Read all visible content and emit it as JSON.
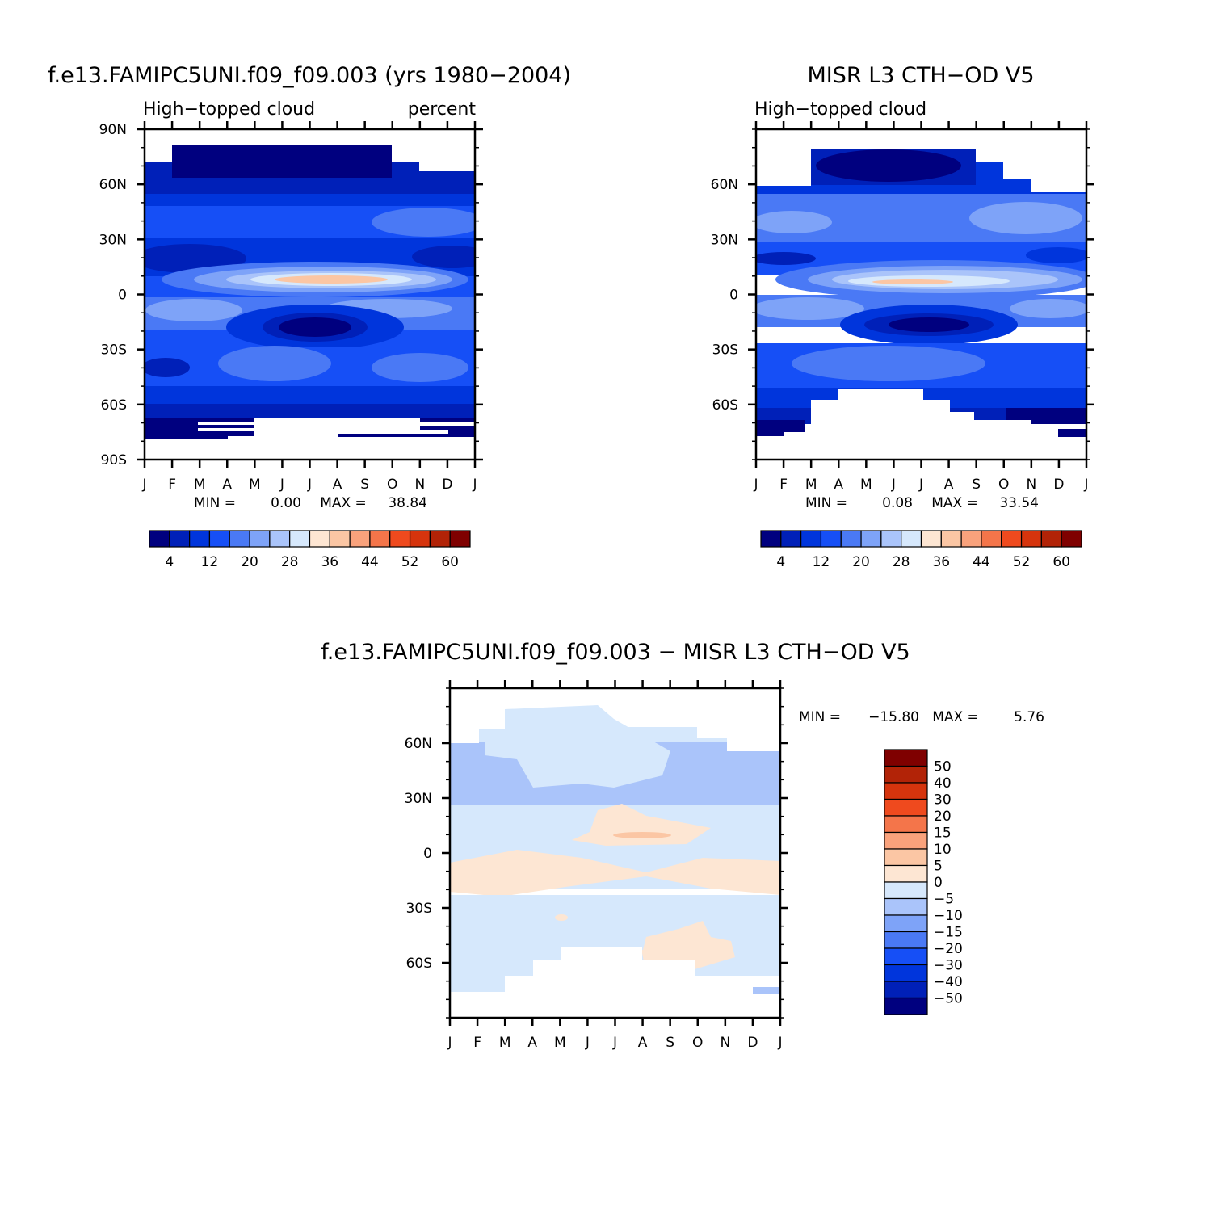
{
  "chart_data": [
    {
      "type": "heatmap",
      "title": "f.e13.FAMIPC5UNI.f09_f09.003 (yrs 1980−2004)",
      "left_string": "High−topped cloud",
      "right_string": "percent",
      "x_ticks": [
        "J",
        "F",
        "M",
        "A",
        "M",
        "J",
        "J",
        "A",
        "S",
        "O",
        "N",
        "D",
        "J"
      ],
      "y_ticks": [
        "90N",
        "60N",
        "30N",
        "0",
        "30S",
        "60S",
        "90S"
      ],
      "min_label": "MIN =",
      "min": "0.00",
      "max_label": "MAX =",
      "max": "38.84",
      "colorbar_labels": [
        "4",
        "12",
        "20",
        "28",
        "36",
        "44",
        "52",
        "60"
      ],
      "colors": [
        "#00007f",
        "#0020b8",
        "#0035dc",
        "#164ff6",
        "#4a79f5",
        "#7ea3f8",
        "#aac4fa",
        "#d6e8fc",
        "#fde6d3",
        "#fbc6a4",
        "#f9a27c",
        "#f4754a",
        "#ef4a1e",
        "#d6340d",
        "#b22307",
        "#7f0000"
      ],
      "coverage": "latitudes 90N to ~82N and ~78S to 90S missing",
      "values_by_latitude": {
        "80N": 2,
        "60N": 6,
        "45N": 12,
        "30N": 14,
        "20N": 9,
        "10N": 28,
        "8N": 36,
        "0": 18,
        "8S": 22,
        "15S": 10,
        "20S": 3,
        "30S": 12,
        "45S": 14,
        "60S": 8,
        "72S": 3
      }
    },
    {
      "type": "heatmap",
      "title": "MISR L3 CTH−OD V5",
      "left_string": "High−topped cloud",
      "right_string": "",
      "x_ticks": [
        "J",
        "F",
        "M",
        "A",
        "M",
        "J",
        "J",
        "A",
        "S",
        "O",
        "N",
        "D",
        "J"
      ],
      "y_ticks": [
        "60N",
        "30N",
        "0",
        "30S",
        "60S"
      ],
      "min_label": "MIN =",
      "min": "0.08",
      "max_label": "MAX =",
      "max": "33.54",
      "colorbar_labels": [
        "4",
        "12",
        "20",
        "28",
        "36",
        "44",
        "52",
        "60"
      ],
      "colors": [
        "#00007f",
        "#0020b8",
        "#0035dc",
        "#164ff6",
        "#4a79f5",
        "#7ea3f8",
        "#aac4fa",
        "#d6e8fc",
        "#fde6d3",
        "#fbc6a4",
        "#f9a27c",
        "#f4754a",
        "#ef4a1e",
        "#d6340d",
        "#b22307",
        "#7f0000"
      ],
      "coverage": "latitudes ~82N to ~52S-78S observed, polar regions missing",
      "values_by_latitude": {
        "78N": 6,
        "60N": 11,
        "45N": 21,
        "30N": 14,
        "20N": 10,
        "10N": 28,
        "7N": 34,
        "0": 21,
        "8S": 24,
        "15S": 12,
        "20S": 5,
        "30S": 14,
        "45S": 13,
        "60S": 10,
        "70S": 4
      }
    },
    {
      "type": "heatmap",
      "title": "f.e13.FAMIPC5UNI.f09_f09.003 − MISR L3 CTH−OD V5",
      "x_ticks": [
        "J",
        "F",
        "M",
        "A",
        "M",
        "J",
        "J",
        "A",
        "S",
        "O",
        "N",
        "D",
        "J"
      ],
      "y_ticks": [
        "60N",
        "30N",
        "0",
        "30S",
        "60S"
      ],
      "min_label": "MIN =",
      "min": "−15.80",
      "max_label": "MAX =",
      "max": "5.76",
      "colorbar_labels": [
        "50",
        "40",
        "30",
        "20",
        "15",
        "10",
        "5",
        "0",
        "−5",
        "−10",
        "−15",
        "−20",
        "−30",
        "−40",
        "−50"
      ],
      "colors": [
        "#7f0000",
        "#b22307",
        "#d6340d",
        "#ef4a1e",
        "#f4754a",
        "#f9a27c",
        "#fbc6a4",
        "#fde6d3",
        "#d6e8fc",
        "#aac4fa",
        "#7ea3f8",
        "#4a79f5",
        "#164ff6",
        "#0035dc",
        "#0020b8",
        "#00007f"
      ],
      "values_by_latitude": {
        "70N": -2,
        "50N": -7,
        "35N": -6,
        "20N": -2,
        "10N": 3,
        "0": -2,
        "8S": 2,
        "20S": 1,
        "35S": -2,
        "55S": 1,
        "65S": -1
      }
    }
  ]
}
